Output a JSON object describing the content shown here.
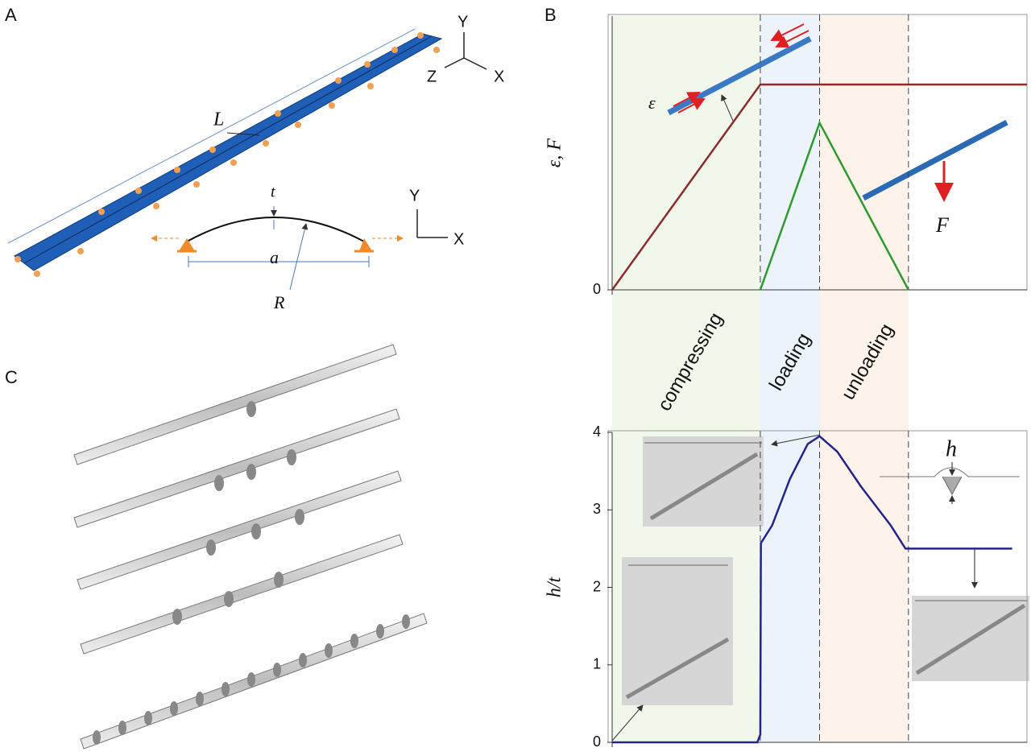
{
  "panel_labels": [
    "A",
    "B",
    "C"
  ],
  "diagram": {
    "length": "L",
    "axes_3d": [
      "Y",
      "Z",
      "X"
    ],
    "thickness": "t",
    "width": "a",
    "radius": "R",
    "axes_2d": [
      "Y",
      "X"
    ]
  },
  "chart_data": [
    {
      "type": "line",
      "ylabel": "ε, F",
      "phases": [
        "compressing",
        "loading",
        "unloading"
      ],
      "annotations": [
        "ε",
        "F"
      ],
      "xlim": [
        0,
        7
      ],
      "ylim": [
        0,
        1
      ],
      "yticks": [
        0
      ],
      "vlines": [
        2.5,
        3.5,
        5
      ],
      "series": [
        {
          "color": "#8b2b2b",
          "x": [
            0,
            2.5,
            7
          ],
          "values": [
            0,
            0.75,
            0.75
          ]
        },
        {
          "color": "#2e9a2e",
          "x": [
            2.5,
            3.5,
            5
          ],
          "values": [
            0,
            0.61,
            0
          ]
        }
      ]
    },
    {
      "type": "line",
      "ylabel": "h/t",
      "annotations": [
        "h"
      ],
      "xlim": [
        0,
        7
      ],
      "ylim": [
        0,
        4
      ],
      "yticks": [
        0,
        1,
        2,
        3,
        4
      ],
      "vlines": [
        2.5,
        3.5,
        5
      ],
      "series": [
        {
          "color": "#23238e",
          "x": [
            0,
            2.15,
            2.45,
            2.5,
            2.51,
            2.7,
            3.0,
            3.3,
            3.5,
            3.8,
            4.2,
            4.7,
            4.95,
            5,
            6.75
          ],
          "values": [
            0,
            0,
            0,
            0.1,
            2.57,
            2.8,
            3.4,
            3.85,
            3.95,
            3.75,
            3.3,
            2.8,
            2.5,
            2.5,
            2.5
          ]
        }
      ]
    }
  ]
}
